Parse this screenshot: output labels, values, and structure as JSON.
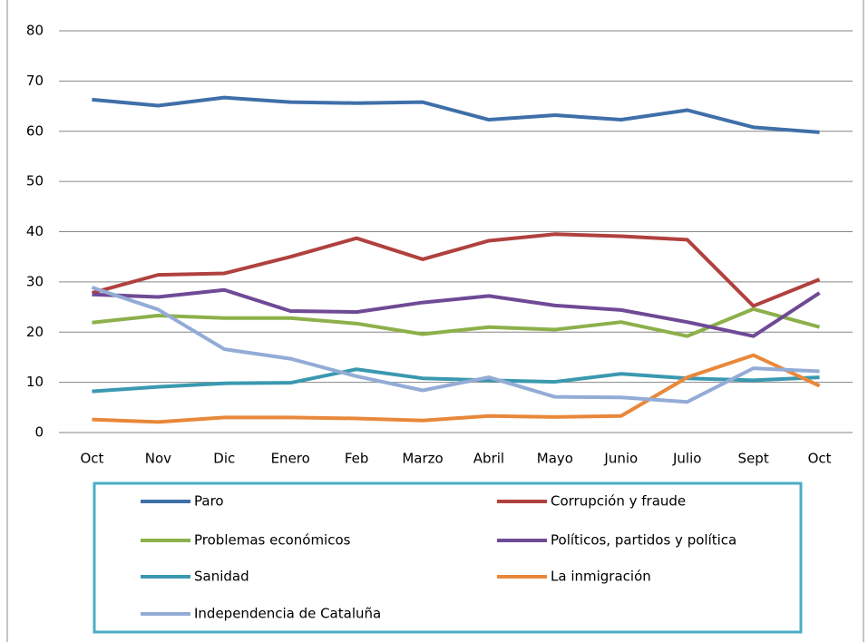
{
  "chart_data": {
    "type": "line",
    "categories": [
      "Oct",
      "Nov",
      "Dic",
      "Enero",
      "Feb",
      "Marzo",
      "Abril",
      "Mayo",
      "Junio",
      "Julio",
      "Sept",
      "Oct"
    ],
    "series": [
      {
        "name": "Paro",
        "color": "#3f6fa9",
        "values": [
          66.3,
          65.1,
          66.7,
          65.8,
          65.6,
          65.8,
          62.3,
          63.2,
          62.3,
          64.2,
          60.8,
          59.8
        ]
      },
      {
        "name": "Corrupción y fraude",
        "color": "#b0413e",
        "values": [
          27.8,
          31.4,
          31.7,
          35.0,
          38.7,
          34.5,
          38.2,
          39.5,
          39.1,
          38.4,
          25.2,
          30.5
        ]
      },
      {
        "name": "Problemas económicos",
        "color": "#8cb04a",
        "values": [
          21.9,
          23.3,
          22.8,
          22.8,
          21.7,
          19.6,
          21.0,
          20.5,
          22.0,
          19.2,
          24.6,
          21.0
        ]
      },
      {
        "name": "Políticos, partidos y política",
        "color": "#6f4a95",
        "values": [
          27.5,
          27.0,
          28.4,
          24.2,
          24.0,
          25.9,
          27.2,
          25.3,
          24.4,
          22.0,
          19.2,
          27.8
        ]
      },
      {
        "name": "Sanidad",
        "color": "#3a99b0",
        "values": [
          8.2,
          9.1,
          9.8,
          9.9,
          12.6,
          10.8,
          10.4,
          10.1,
          11.7,
          10.8,
          10.4,
          11.0
        ]
      },
      {
        "name": "La inmigración",
        "color": "#e8883a",
        "values": [
          2.6,
          2.1,
          3.0,
          3.0,
          2.8,
          2.4,
          3.3,
          3.1,
          3.3,
          11.0,
          15.4,
          9.3
        ]
      },
      {
        "name": "Independencia de Cataluña",
        "color": "#93acd6",
        "values": [
          28.9,
          24.5,
          16.6,
          14.7,
          11.2,
          8.4,
          11.0,
          7.1,
          7.0,
          6.1,
          12.8,
          12.2
        ]
      }
    ],
    "ylim": [
      0,
      80
    ],
    "yticks": [
      0,
      10,
      20,
      30,
      40,
      50,
      60,
      70,
      80
    ],
    "grid": true,
    "legend": "bottom"
  }
}
